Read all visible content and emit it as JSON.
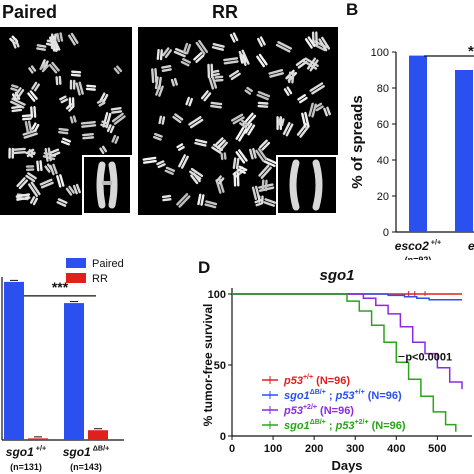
{
  "panels": {
    "micrographs": {
      "left_title": "Paired",
      "right_title": "RR"
    },
    "B": {
      "letter": "B",
      "chart_data": {
        "type": "bar",
        "ylabel": "% of spreads",
        "ylim": [
          0,
          100
        ],
        "yticks": [
          "0",
          "20",
          "40",
          "60",
          "80",
          "100"
        ],
        "categories": [
          {
            "name": "esco2",
            "sup": "+/+",
            "n": "(n=92)"
          },
          {
            "name": "es",
            "sup": "",
            "n": ""
          }
        ],
        "series": [
          {
            "values": [
              98,
              90
            ]
          }
        ],
        "colors": {
          "paired": "#2b50f0"
        },
        "significance": "*"
      }
    },
    "C": {
      "chart_data": {
        "type": "bar",
        "legend": [
          "Paired",
          "RR"
        ],
        "colors": {
          "paired": "#2b50f0",
          "rr": "#e0201c"
        },
        "ylim": [
          0,
          100
        ],
        "categories": [
          {
            "name": "sgo1",
            "sup": "+/+",
            "n": "(n=131)"
          },
          {
            "name": "sgo1",
            "sup": "ΔB/+",
            "n": "(n=143)"
          }
        ],
        "series": [
          {
            "name": "Paired",
            "values": [
              97,
              84
            ]
          },
          {
            "name": "RR",
            "values": [
              1,
              6
            ]
          }
        ],
        "significance": "***"
      }
    },
    "D": {
      "letter": "D",
      "chart_data": {
        "type": "line",
        "title": "sgo1",
        "ylabel": "% tumor-free survival",
        "xlabel": "Days",
        "xlim": [
          0,
          560
        ],
        "ylim": [
          0,
          100
        ],
        "xticks": [
          "0",
          "100",
          "200",
          "300",
          "400",
          "500"
        ],
        "yticks": [
          "0",
          "50",
          "100"
        ],
        "pvalue": "p<0.0001",
        "series": [
          {
            "name": "p53",
            "sup": "+/+",
            "n": "(N=96)",
            "color": "#e0201c",
            "x": [
              0,
              560
            ],
            "y": [
              100,
              100
            ]
          },
          {
            "name": "sgo1",
            "sup": "ΔB/+",
            "name2": "p53",
            "sup2": "+/+",
            "n": "(N=96)",
            "color": "#2b50f0",
            "x": [
              0,
              330,
              380,
              420,
              450,
              480,
              520,
              560
            ],
            "y": [
              100,
              100,
              99,
              98,
              97,
              96,
              96,
              96
            ]
          },
          {
            "name": "p53",
            "sup": "+2/+",
            "n": "(N=96)",
            "color": "#8a2be2",
            "x": [
              0,
              290,
              320,
              350,
              380,
              410,
              440,
              470,
              500,
              530,
              560
            ],
            "y": [
              100,
              100,
              97,
              92,
              86,
              77,
              66,
              58,
              48,
              38,
              33
            ]
          },
          {
            "name": "sgo1",
            "sup": "ΔB/+",
            "name2": "p53",
            "sup2": "+2/+",
            "n": "(N=96)",
            "color": "#2aa51a",
            "x": [
              0,
              250,
              280,
              310,
              340,
              370,
              400,
              430,
              460,
              490,
              520,
              545
            ],
            "y": [
              100,
              100,
              95,
              88,
              78,
              66,
              52,
              40,
              28,
              17,
              8,
              3
            ]
          }
        ]
      }
    }
  }
}
